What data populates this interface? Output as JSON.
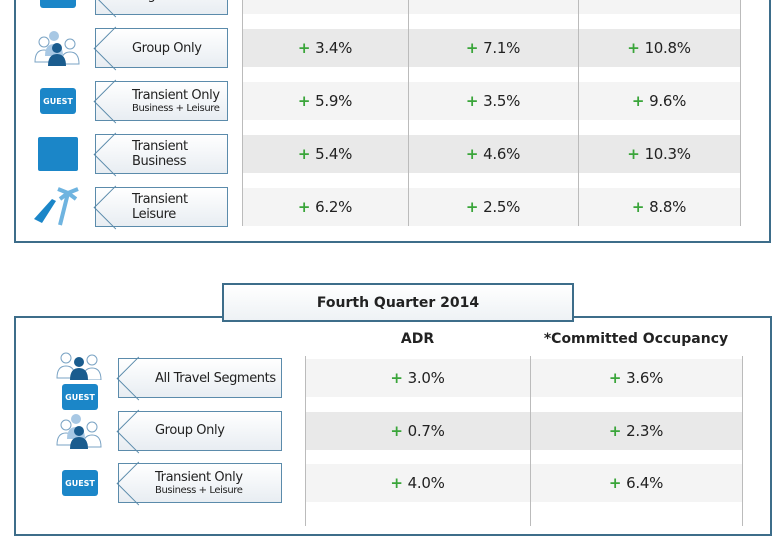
{
  "top_section": {
    "rows": [
      {
        "label": "Segments",
        "sub": "",
        "values": [
          "",
          "",
          ""
        ],
        "icon": "guest-bag-icon"
      },
      {
        "label": "Group Only",
        "sub": "",
        "values": [
          "3.4%",
          "7.1%",
          "10.8%"
        ],
        "icon": "group-people-icon"
      },
      {
        "label": "Transient Only",
        "sub": "Business + Leisure",
        "values": [
          "5.9%",
          "3.5%",
          "9.6%"
        ],
        "icon": "guest-bag-icon"
      },
      {
        "label": "Transient",
        "sub": "Business",
        "values": [
          "5.4%",
          "4.6%",
          "10.3%"
        ],
        "icon": "briefcase-icon"
      },
      {
        "label": "Transient",
        "sub": "Leisure",
        "values": [
          "6.2%",
          "2.5%",
          "8.8%"
        ],
        "icon": "beach-chair-palm-icon"
      }
    ]
  },
  "bottom_section": {
    "title": "Fourth Quarter 2014",
    "columns": [
      "ADR",
      "*Committed Occupancy"
    ],
    "rows": [
      {
        "label": "All Travel Segments",
        "sub": "",
        "values": [
          "3.0%",
          "3.6%"
        ],
        "icon": "group-and-guest-icon"
      },
      {
        "label": "Group Only",
        "sub": "",
        "values": [
          "0.7%",
          "2.3%"
        ],
        "icon": "group-people-icon"
      },
      {
        "label": "Transient Only",
        "sub": "Business + Leisure",
        "values": [
          "4.0%",
          "6.4%"
        ],
        "icon": "guest-bag-icon"
      }
    ]
  },
  "plus_sign": "+",
  "guest_text": "GUEST",
  "colors": {
    "frame": "#3d6d8a",
    "plus": "#3aa53a",
    "icon_blue": "#1b86c8"
  }
}
